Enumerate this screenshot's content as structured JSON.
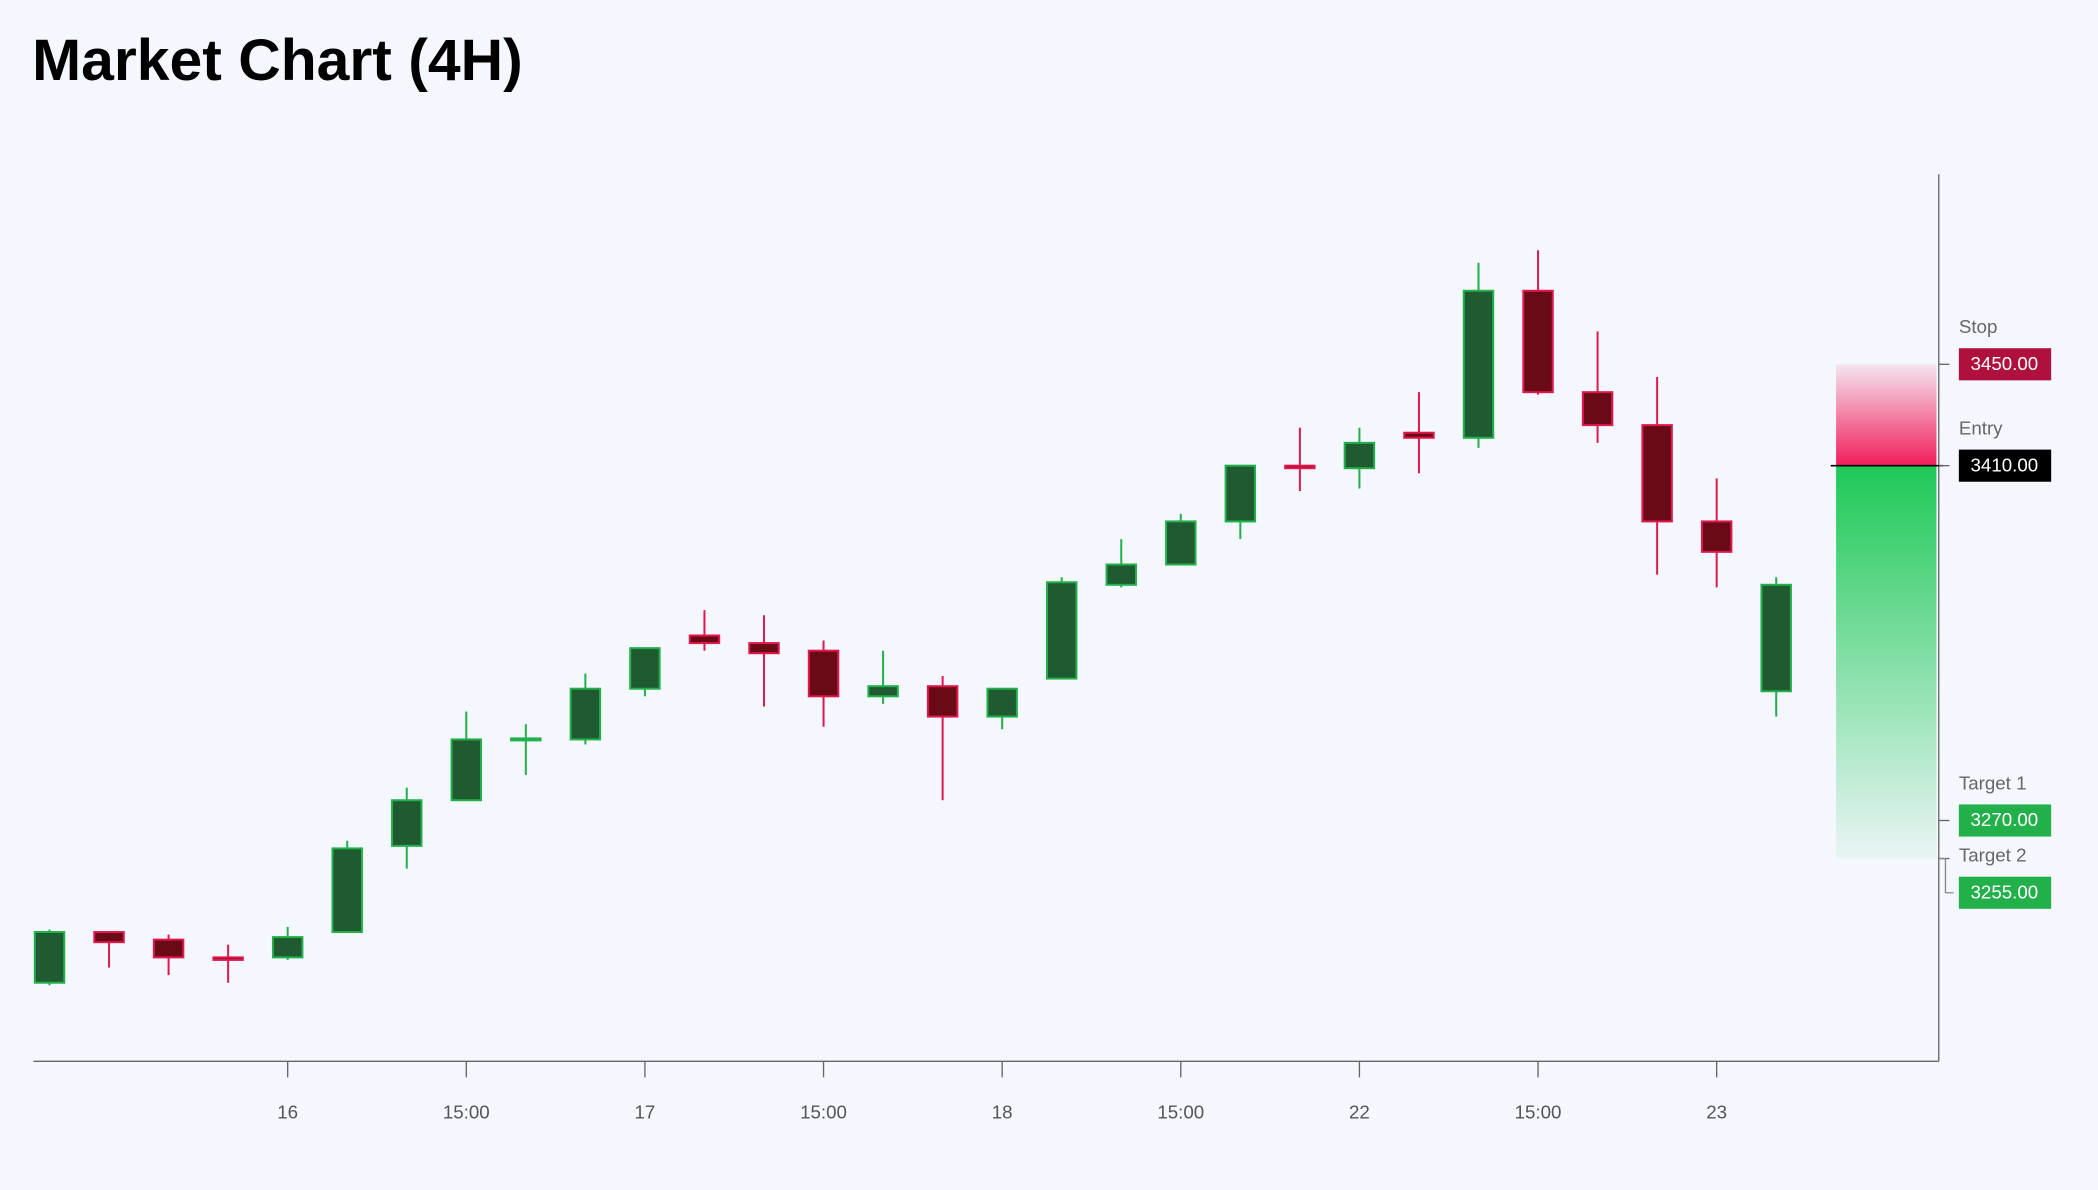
{
  "chart_data": {
    "type": "candlestick",
    "title": "Market Chart (4H)",
    "categories": [
      null,
      null,
      null,
      null,
      "16",
      null,
      null,
      "15:00",
      null,
      null,
      "17",
      null,
      null,
      "15:00",
      null,
      null,
      "18",
      null,
      null,
      "15:00",
      null,
      null,
      "22",
      null,
      null,
      "15:00",
      null,
      null,
      "23",
      null
    ],
    "open": [
      3206,
      3226,
      3223,
      3216,
      3216,
      3226,
      3260,
      3278,
      3302,
      3302,
      3322,
      3343,
      3340,
      3337,
      3319,
      3323,
      3311,
      3326,
      3363,
      3371,
      3388,
      3410,
      3409,
      3423,
      3421,
      3479,
      3439,
      3426,
      3388,
      3321
    ],
    "high": [
      3227,
      3226,
      3225,
      3221,
      3228,
      3262,
      3283,
      3313,
      3308,
      3328,
      3338,
      3353,
      3351,
      3341,
      3337,
      3327,
      3322,
      3366,
      3381,
      3391,
      3410,
      3425,
      3425,
      3439,
      3490,
      3495,
      3463,
      3445,
      3405,
      3366
    ],
    "low": [
      3205,
      3212,
      3209,
      3206,
      3215,
      3226,
      3251,
      3278,
      3288,
      3300,
      3319,
      3337,
      3315,
      3307,
      3316,
      3278,
      3306,
      3326,
      3362,
      3371,
      3381,
      3400,
      3401,
      3407,
      3417,
      3438,
      3419,
      3367,
      3362,
      3311
    ],
    "close": [
      3226,
      3222,
      3216,
      3215,
      3224,
      3259,
      3278,
      3302,
      3302,
      3322,
      3338,
      3340,
      3336,
      3319,
      3323,
      3311,
      3322,
      3364,
      3371,
      3388,
      3410,
      3409,
      3419,
      3421,
      3479,
      3439,
      3426,
      3388,
      3376,
      3363
    ],
    "up_color": "#22b04b",
    "up_fill": "#1f5a30",
    "down_color": "#e0184d",
    "down_fill": "#6a0a16",
    "ylim": [
      3175,
      3525
    ],
    "levels": [
      {
        "name": "Stop",
        "value": 3450,
        "label": "3450.00",
        "color": "#b0103e"
      },
      {
        "name": "Entry",
        "value": 3410,
        "label": "3410.00",
        "color": "#000000"
      },
      {
        "name": "Target 1",
        "value": 3270,
        "label": "3270.00",
        "color": "#22b04b"
      },
      {
        "name": "Target 2",
        "value": 3255,
        "label": "3255.00",
        "color": "#22b04b"
      }
    ]
  }
}
